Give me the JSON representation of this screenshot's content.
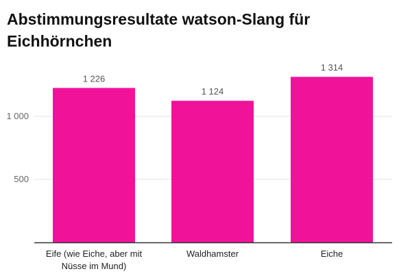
{
  "chart_data": {
    "type": "bar",
    "title": "Abstimmungsresultate watson-Slang für Eichhörnchen",
    "categories": [
      [
        "Eife (wie Eiche, aber mit",
        "Nüsse im Mund)"
      ],
      [
        "Waldhamster"
      ],
      [
        "Eiche"
      ]
    ],
    "values": [
      1226,
      1124,
      1314
    ],
    "value_labels": [
      "1 226",
      "1 124",
      "1 314"
    ],
    "yticks": [
      {
        "value": 500,
        "label": "500"
      },
      {
        "value": 1000,
        "label": "1 000"
      }
    ],
    "ylim": [
      0,
      1500
    ],
    "xlabel": "",
    "ylabel": "",
    "grid": true,
    "legend": "none",
    "colors": {
      "bar": "#F0139A",
      "grid": "#e3e3e3",
      "axis": "#333333"
    }
  }
}
